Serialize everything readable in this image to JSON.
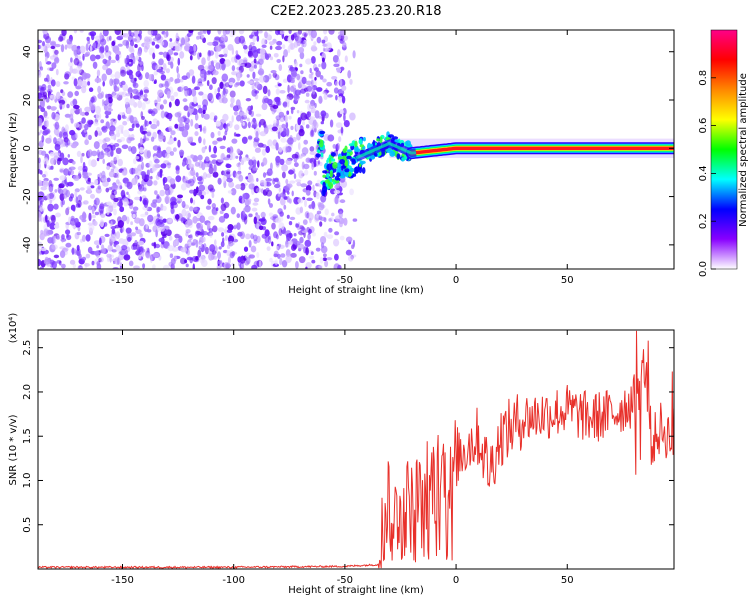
{
  "title": "C2E2.2023.285.23.20.R18",
  "chart_data": [
    {
      "type": "heatmap",
      "name": "spectrogram",
      "xlabel": "Height of straight line (km)",
      "ylabel": "Frequency (Hz)",
      "xlim": [
        -188,
        98
      ],
      "ylim": [
        -50,
        49
      ],
      "xticks": [
        -150,
        -100,
        -50,
        0,
        50
      ],
      "yticks": [
        -40,
        -20,
        0,
        20,
        40
      ],
      "colorbar": {
        "label": "Normalized spectral amplitude",
        "range": [
          0,
          1
        ],
        "ticks": [
          "0.0",
          "0.2",
          "0.4",
          "0.6",
          "0.8"
        ],
        "colors": [
          "#ffffff",
          "#8800ff",
          "#0000ff",
          "#00ffff",
          "#00ff00",
          "#ffff00",
          "#ff8800",
          "#ff0000",
          "#ff0088"
        ]
      },
      "features": {
        "noise_region_x": [
          -188,
          -45
        ],
        "signal_track": [
          {
            "x": -60,
            "y": -12
          },
          {
            "x": -50,
            "y": -6
          },
          {
            "x": -40,
            "y": -2
          },
          {
            "x": -30,
            "y": 2
          },
          {
            "x": -20,
            "y": -2
          },
          {
            "x": -10,
            "y": -1
          },
          {
            "x": 0,
            "y": 0
          },
          {
            "x": 50,
            "y": 0
          },
          {
            "x": 98,
            "y": 0
          }
        ]
      }
    },
    {
      "type": "line",
      "name": "snr",
      "xlabel": "Height of straight line (km)",
      "ylabel": "SNR (10 * v/v)",
      "yscale_label": "(x10⁴)",
      "xlim": [
        -188,
        98
      ],
      "ylim": [
        0,
        2.7
      ],
      "xticks": [
        -150,
        -100,
        -50,
        0,
        50
      ],
      "yticks": [
        "0.5",
        "1.0",
        "1.5",
        "2.0",
        "2.5"
      ],
      "color": "#e8302a",
      "series": [
        {
          "x": [
            -188,
            -150,
            -100,
            -50,
            -35,
            -32,
            -30,
            -28,
            -25,
            -20,
            -15,
            -10,
            -5,
            0,
            5,
            10,
            15,
            20,
            25,
            30,
            40,
            50,
            60,
            70,
            80,
            85,
            88,
            92,
            96,
            98
          ],
          "y": [
            0.02,
            0.02,
            0.02,
            0.03,
            0.05,
            0.6,
            0.9,
            0.5,
            0.8,
            0.7,
            0.9,
            1.0,
            1.1,
            1.25,
            1.4,
            1.5,
            1.1,
            1.5,
            1.6,
            1.7,
            1.75,
            1.8,
            1.7,
            1.75,
            1.9,
            2.3,
            1.4,
            1.6,
            1.5,
            1.55
          ]
        }
      ]
    }
  ]
}
